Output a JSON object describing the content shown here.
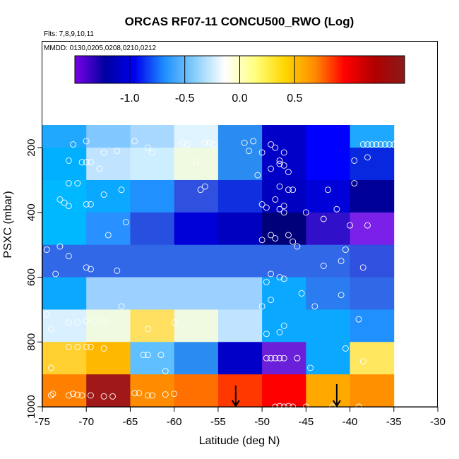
{
  "chart_data": {
    "type": "heatmap",
    "title": "ORCAS RF07-11 CONCU500_RWO (Log)",
    "flights_note": "Flts: 7,8,9,10,11",
    "dates_note": "MMDD: 0130,0205,0208,0210,0212",
    "xlabel": "Latitude (deg N)",
    "ylabel": "PSXC (mbar)",
    "xlim": [
      -75,
      -30
    ],
    "ylim": [
      1000,
      100
    ],
    "xticks": [
      -75,
      -70,
      -65,
      -60,
      -55,
      -50,
      -45,
      -40,
      -35,
      -30
    ],
    "xtick_labels": [
      "-75",
      "-70",
      "-65",
      "-60",
      "-55",
      "-50",
      "-45",
      "-40",
      "-35",
      "-30"
    ],
    "yticks": [
      200,
      400,
      600,
      800,
      1000
    ],
    "ytick_labels": [
      "200",
      "400",
      "600",
      "800",
      "1000"
    ],
    "colorbar": {
      "range": [
        -1.5,
        1.5
      ],
      "ticks": [
        -1.0,
        -0.5,
        0.0,
        0.5
      ],
      "tick_labels": [
        "-1.0",
        "-0.5",
        "0.0",
        "0.5"
      ],
      "stops": [
        "#7b00e8",
        "#0000a0",
        "#0000ee",
        "#1e90ff",
        "#87cefa",
        "#ffffff",
        "#ffff80",
        "#ffd700",
        "#ff8c00",
        "#ff0000",
        "#b00000",
        "#8b1a1a"
      ]
    },
    "lat_edges": [
      -75,
      -70,
      -65,
      -60,
      -55,
      -50,
      -45,
      -40,
      -35
    ],
    "p_edges": [
      100,
      200,
      300,
      400,
      500,
      600,
      700,
      800,
      900,
      1000
    ],
    "cells": [
      [
        "#20a8ff",
        "#80c8ff",
        "#a8d8ff",
        "#e0f4ff",
        "#2a8cf0",
        "#0000c8",
        "#0000ff",
        "#1ea8ff"
      ],
      [
        "#00b0ff",
        "#c0e4ff",
        "#cdeeff",
        "#f0fae0",
        "#2a8cf0",
        "#0000c8",
        "#0000ff",
        "#0828e0"
      ],
      [
        "#00b8ff",
        "#0aa8ff",
        "#2090ff",
        "#3050e0",
        "#1030e0",
        "#0000c0",
        "#0000d8",
        "#000098"
      ],
      [
        "#00b8ff",
        "#2890ff",
        "#2850e0",
        "#0000d8",
        "#0000c0",
        "#00007a",
        "#3010c8",
        "#7a20e8"
      ],
      [
        "#3068e8",
        "#3068e8",
        "#3068e8",
        "#3068e8",
        "#3068e8",
        "#3068e8",
        "#3068e8",
        "#3050e0"
      ],
      [
        "#0aa8ff",
        "#9cd0ff",
        "#9cd0ff",
        "#9cd0ff",
        "#9cd0ff",
        "#0aa8ff",
        "#2a7cf0",
        "#3068e8"
      ],
      [
        "#d8f0ff",
        "#f0fae0",
        "#ffe060",
        "#f0fae0",
        "#c0e4ff",
        "#0aa8ff",
        "#0aa8ff",
        "#2090ff"
      ],
      [
        "#ffd030",
        "#ffb800",
        "#60c0ff",
        "#2a8cf0",
        "#0000c8",
        "#6a20d8",
        "#0aa8ff",
        "#ffe860"
      ],
      [
        "#ff8000",
        "#a01818",
        "#ff8c00",
        "#ff7000",
        "#ff3800",
        "#ff0000",
        "#ffa800",
        "#ff9000"
      ]
    ],
    "points": [
      [
        -74,
        965
      ],
      [
        -73.8,
        960
      ],
      [
        -72,
        965
      ],
      [
        -71.5,
        960
      ],
      [
        -71,
        963
      ],
      [
        -70.5,
        965
      ],
      [
        -69.5,
        965
      ],
      [
        -68,
        968
      ],
      [
        -67,
        968
      ],
      [
        -64.5,
        958
      ],
      [
        -64,
        958
      ],
      [
        -63,
        965
      ],
      [
        -62.5,
        965
      ],
      [
        -61,
        962
      ],
      [
        -60,
        960
      ],
      [
        -48.5,
        1000
      ],
      [
        -48,
        998
      ],
      [
        -47.5,
        1000
      ],
      [
        -47,
        998
      ],
      [
        -46.5,
        1000
      ],
      [
        -45,
        1000
      ],
      [
        -42,
        1000
      ],
      [
        -39,
        1000
      ],
      [
        -74,
        880
      ],
      [
        -72,
        815
      ],
      [
        -71,
        815
      ],
      [
        -70,
        815
      ],
      [
        -69.5,
        815
      ],
      [
        -68,
        820
      ],
      [
        -63.5,
        840
      ],
      [
        -63,
        840
      ],
      [
        -61.5,
        840
      ],
      [
        -61,
        890
      ],
      [
        -49.5,
        850
      ],
      [
        -49,
        850
      ],
      [
        -48.5,
        850
      ],
      [
        -48,
        850
      ],
      [
        -47.5,
        850
      ],
      [
        -46,
        850
      ],
      [
        -44.5,
        880
      ],
      [
        -40.5,
        820
      ],
      [
        -38.5,
        860
      ],
      [
        -74.5,
        715
      ],
      [
        -74,
        760
      ],
      [
        -72,
        740
      ],
      [
        -71,
        740
      ],
      [
        -70,
        735
      ],
      [
        -69,
        735
      ],
      [
        -68,
        735
      ],
      [
        -63,
        760
      ],
      [
        -60,
        740
      ],
      [
        -49.5,
        775
      ],
      [
        -48,
        770
      ],
      [
        -47.5,
        750
      ],
      [
        -66,
        690
      ],
      [
        -50,
        690
      ],
      [
        -49,
        670
      ],
      [
        -45.5,
        650
      ],
      [
        -44,
        690
      ],
      [
        -41,
        655
      ],
      [
        -39,
        730
      ],
      [
        -74.5,
        515
      ],
      [
        -73.5,
        590
      ],
      [
        -73,
        505
      ],
      [
        -72,
        535
      ],
      [
        -70,
        570
      ],
      [
        -69.5,
        575
      ],
      [
        -66.5,
        580
      ],
      [
        -49.5,
        615
      ],
      [
        -49,
        590
      ],
      [
        -48,
        600
      ],
      [
        -47.5,
        605
      ],
      [
        -43,
        565
      ],
      [
        -41,
        550
      ],
      [
        -38.5,
        570
      ],
      [
        -73,
        360
      ],
      [
        -72.5,
        370
      ],
      [
        -72,
        380
      ],
      [
        -71,
        310
      ],
      [
        -70,
        375
      ],
      [
        -69.5,
        375
      ],
      [
        -68,
        345
      ],
      [
        -66,
        330
      ],
      [
        -67.5,
        470
      ],
      [
        -65.5,
        430
      ],
      [
        -57,
        330
      ],
      [
        -56.5,
        320
      ],
      [
        -50,
        375
      ],
      [
        -49.5,
        385
      ],
      [
        -48.5,
        360
      ],
      [
        -48,
        390
      ],
      [
        -47.5,
        380
      ],
      [
        -47,
        470
      ],
      [
        -46.5,
        490
      ],
      [
        -46,
        505
      ],
      [
        -45,
        400
      ],
      [
        -43,
        420
      ],
      [
        -42.5,
        330
      ],
      [
        -41.5,
        390
      ],
      [
        -40.5,
        515
      ],
      [
        -40,
        440
      ],
      [
        -39.5,
        310
      ],
      [
        -38,
        440
      ],
      [
        -50,
        485
      ],
      [
        -49,
        470
      ],
      [
        -48.5,
        480
      ],
      [
        -47.5,
        400
      ],
      [
        -47,
        330
      ],
      [
        -46.5,
        330
      ],
      [
        -48,
        320
      ],
      [
        -72,
        310
      ],
      [
        -70.5,
        245
      ],
      [
        -70,
        245
      ],
      [
        -69.5,
        245
      ],
      [
        -68.5,
        265
      ],
      [
        -68,
        215
      ],
      [
        -66.5,
        210
      ],
      [
        -72,
        240
      ],
      [
        -71.5,
        190
      ],
      [
        -70,
        180
      ],
      [
        -64.5,
        180
      ],
      [
        -63,
        200
      ],
      [
        -62.5,
        215
      ],
      [
        -59,
        185
      ],
      [
        -58.5,
        190
      ],
      [
        -57.5,
        245
      ],
      [
        -56.5,
        185
      ],
      [
        -56,
        185
      ],
      [
        -55.5,
        190
      ],
      [
        -52,
        185
      ],
      [
        -51.5,
        210
      ],
      [
        -51,
        180
      ],
      [
        -50,
        215
      ],
      [
        -49,
        190
      ],
      [
        -48.5,
        200
      ],
      [
        -48,
        240
      ],
      [
        -47.5,
        215
      ],
      [
        -49,
        265
      ],
      [
        -48,
        250
      ],
      [
        -47,
        275
      ],
      [
        -38.5,
        190
      ],
      [
        -38,
        190
      ],
      [
        -37.5,
        190
      ],
      [
        -37,
        190
      ],
      [
        -36.5,
        190
      ],
      [
        -36,
        190
      ],
      [
        -35.5,
        190
      ],
      [
        -35,
        190
      ],
      [
        -34.5,
        190
      ],
      [
        -39.5,
        240
      ],
      [
        -38,
        230
      ],
      [
        -47.5,
        255
      ],
      [
        -50.5,
        285
      ]
    ],
    "arrows": [
      {
        "lat": -53,
        "p_from": 935,
        "p_to": 1000
      },
      {
        "lat": -41.5,
        "p_from": 930,
        "p_to": 1000
      }
    ]
  }
}
